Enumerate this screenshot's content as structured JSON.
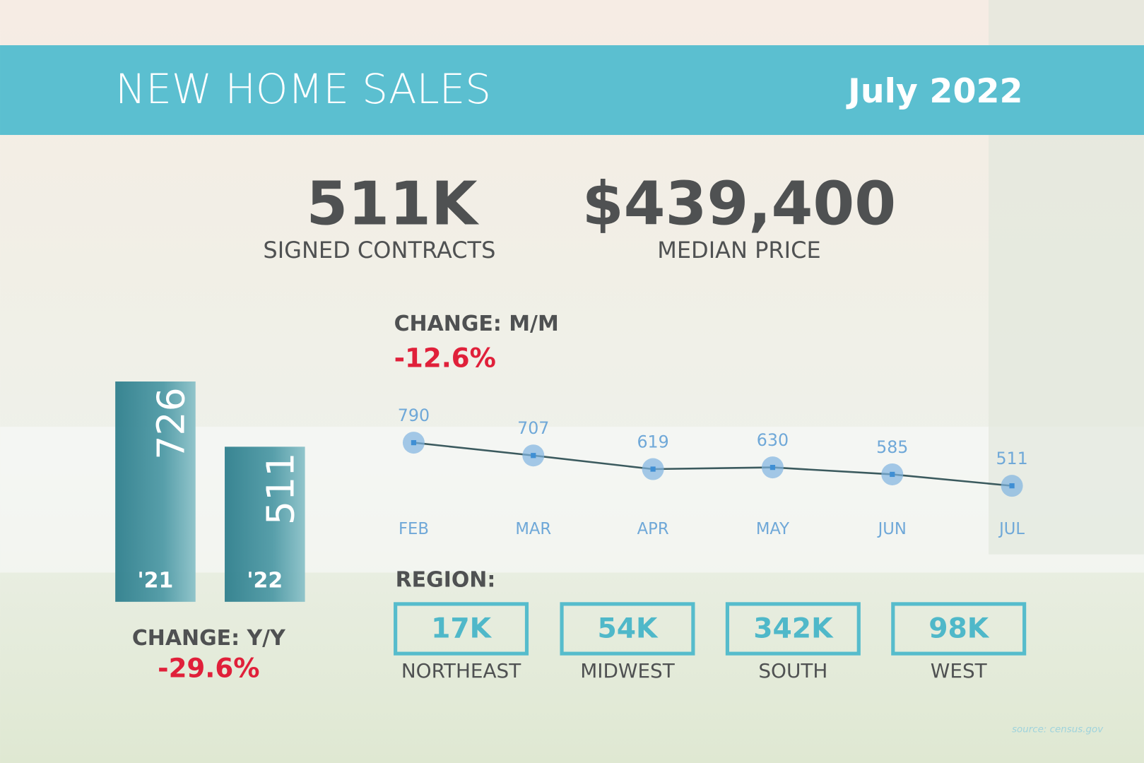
{
  "header": {
    "title": "NEW HOME SALES",
    "date": "July 2022"
  },
  "stats": [
    {
      "value": "511K",
      "label": "SIGNED CONTRACTS"
    },
    {
      "value": "$439,400",
      "label": "MEDIAN PRICE"
    }
  ],
  "change_mm": {
    "label": "CHANGE: M/M",
    "value": "-12.6%"
  },
  "change_yy": {
    "label": "CHANGE: Y/Y",
    "value": "-29.6%"
  },
  "region": {
    "title": "REGION:",
    "items": [
      {
        "value": "17K",
        "name": "NORTHEAST"
      },
      {
        "value": "54K",
        "name": "MIDWEST"
      },
      {
        "value": "342K",
        "name": "SOUTH"
      },
      {
        "value": "98K",
        "name": "WEST"
      }
    ]
  },
  "source": "source: census.gov",
  "chart_data": [
    {
      "type": "bar",
      "categories": [
        "'21",
        "'22"
      ],
      "values": [
        726,
        511
      ],
      "color": "#3d8c9a"
    },
    {
      "type": "line",
      "categories": [
        "FEB",
        "MAR",
        "APR",
        "MAY",
        "JUN",
        "JUL"
      ],
      "values": [
        790,
        707,
        619,
        630,
        585,
        511
      ],
      "color": "#3b5a5e",
      "marker_color": "#7fb3df"
    }
  ]
}
